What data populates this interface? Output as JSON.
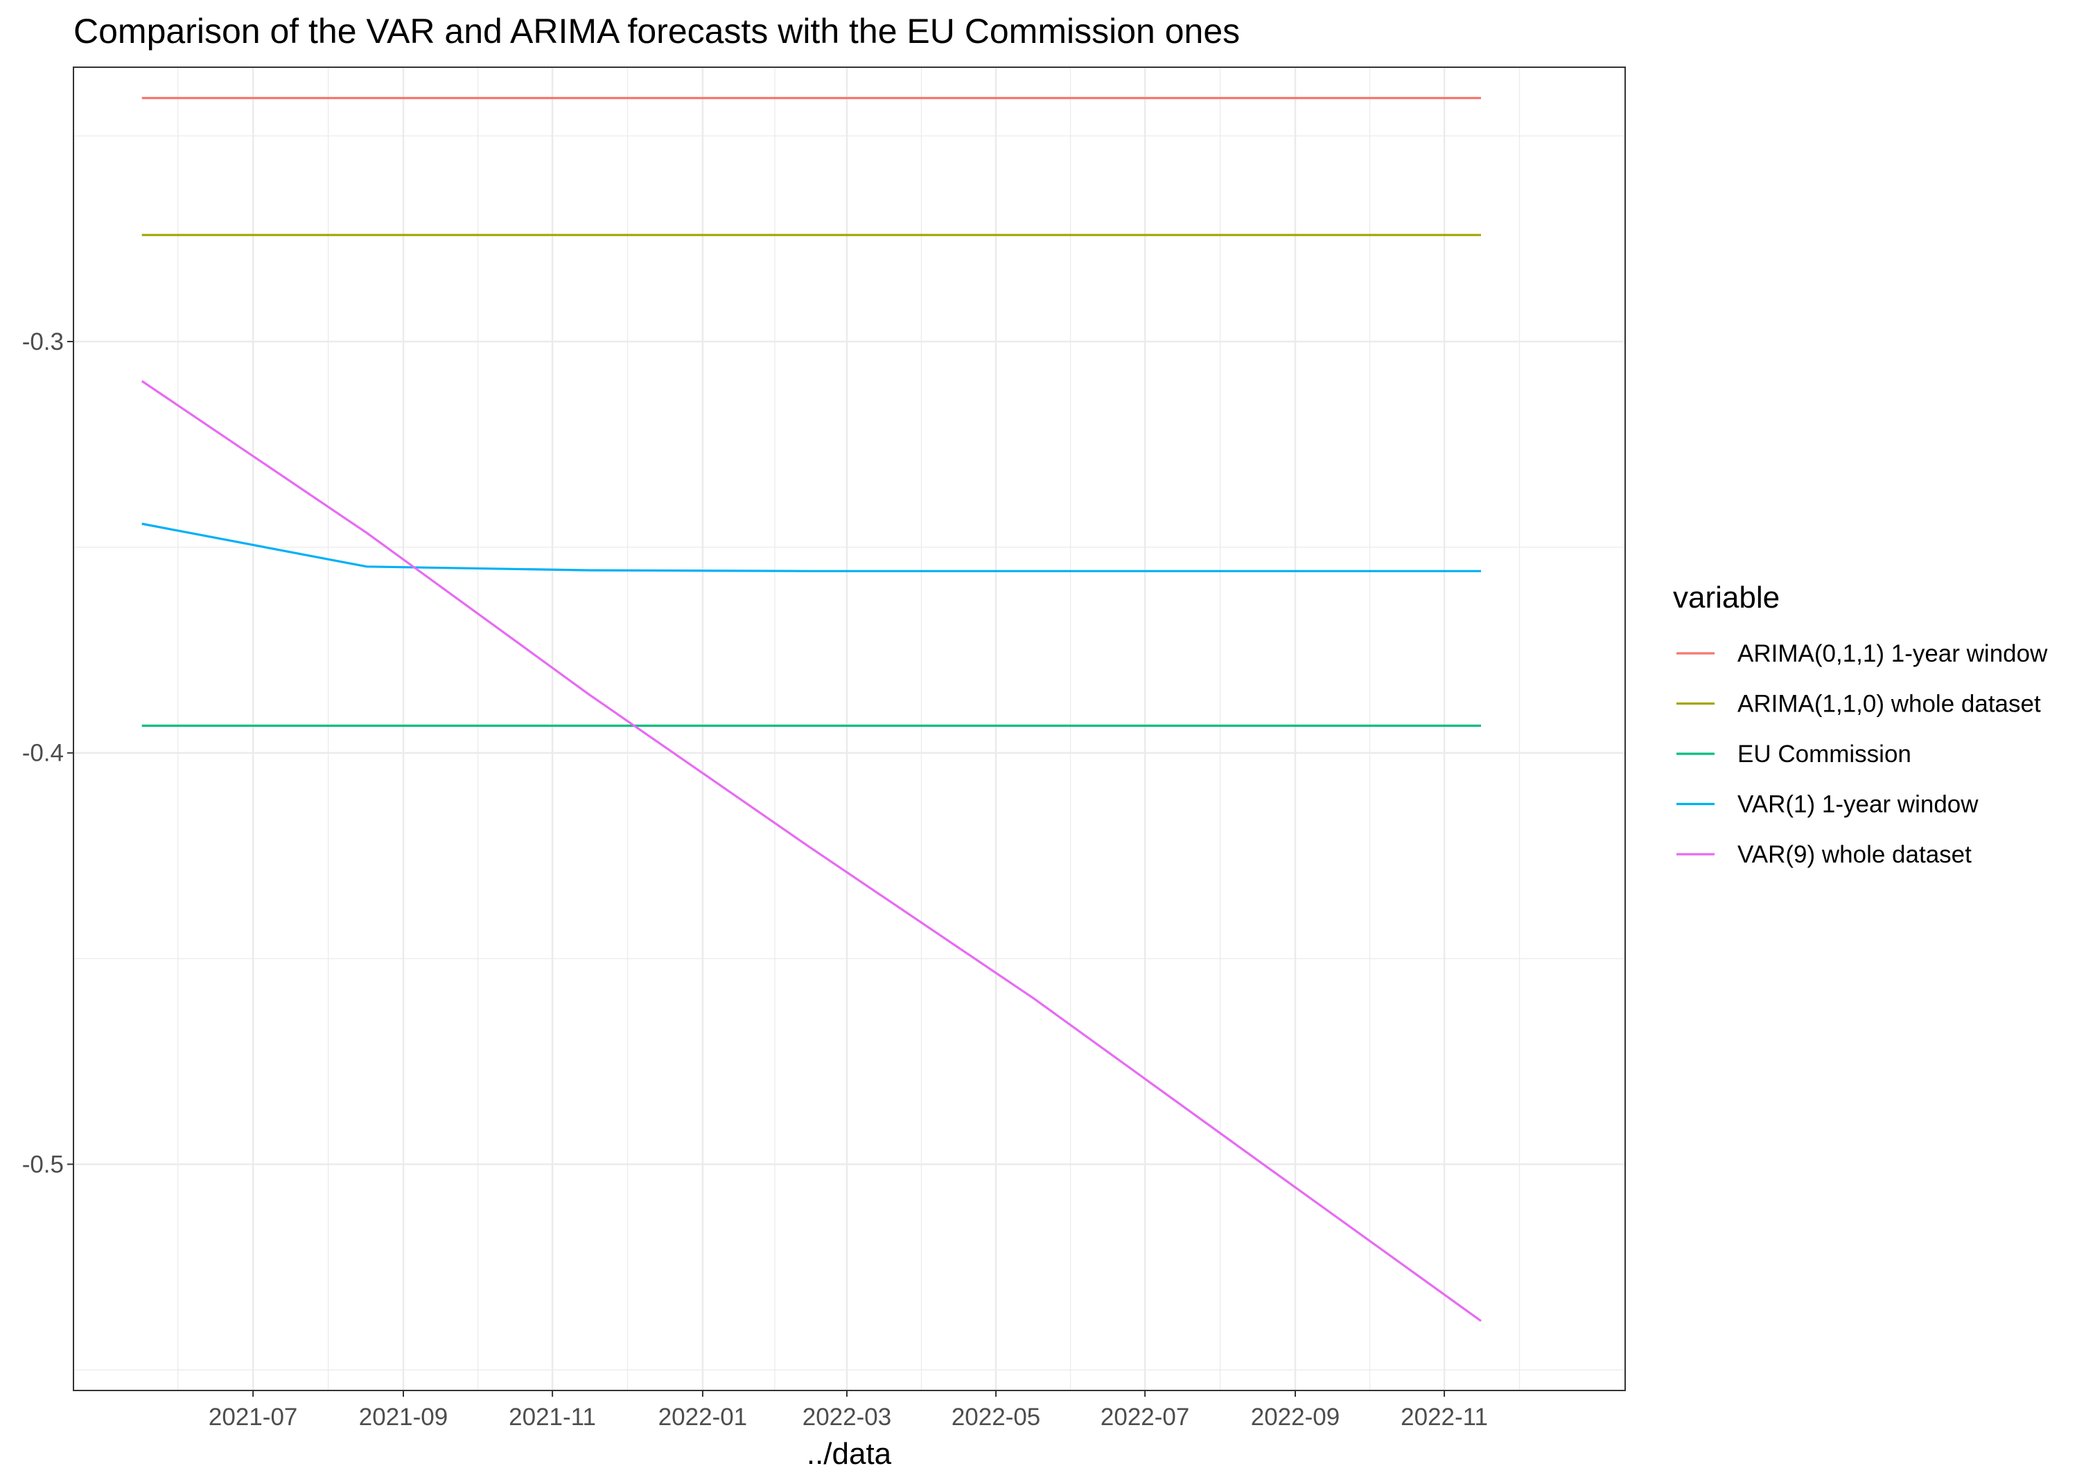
{
  "chart_data": {
    "type": "line",
    "title": "Comparison of the VAR and ARIMA forecasts with the EU Commission ones",
    "xlabel": "../data",
    "ylabel": "",
    "x": [
      "2021-06-01",
      "2021-09-01",
      "2021-12-01",
      "2022-03-01",
      "2022-06-01",
      "2022-09-01",
      "2022-12-01"
    ],
    "xlim": [
      "2021-05-04",
      "2023-01-29"
    ],
    "ylim": [
      -0.555,
      -0.2333
    ],
    "x_ticks": [
      "2021-07",
      "2021-09",
      "2021-11",
      "2022-01",
      "2022-03",
      "2022-05",
      "2022-07",
      "2022-09",
      "2022-11"
    ],
    "y_ticks": [
      -0.3,
      -0.4,
      -0.5
    ],
    "y_tick_labels": [
      "-0.3",
      "-0.4",
      "-0.5"
    ],
    "grid": true,
    "legend": {
      "title": "variable",
      "position": "right"
    },
    "series": [
      {
        "name": "ARIMA(0,1,1) 1-year window",
        "color": "#F8766D",
        "values": [
          -0.2408,
          -0.2408,
          -0.2408,
          -0.2408,
          -0.2408,
          -0.2408,
          -0.2408
        ]
      },
      {
        "name": "ARIMA(1,1,0) whole dataset",
        "color": "#A3A500",
        "values": [
          -0.2741,
          -0.2741,
          -0.2741,
          -0.2741,
          -0.2741,
          -0.2741,
          -0.2741
        ]
      },
      {
        "name": "EU Commission",
        "color": "#00BF7D",
        "values": [
          -0.3934,
          -0.3934,
          -0.3934,
          -0.3934,
          -0.3934,
          -0.3934,
          -0.3934
        ]
      },
      {
        "name": "VAR(1) 1-year window",
        "color": "#00B0F6",
        "values": [
          -0.3443,
          -0.3547,
          -0.3556,
          -0.3558,
          -0.3558,
          -0.3558,
          -0.3558
        ]
      },
      {
        "name": "VAR(9) whole dataset",
        "color": "#E76BF3",
        "values": [
          -0.3096,
          -0.3465,
          -0.3858,
          -0.4228,
          -0.4597,
          -0.4992,
          -0.5381
        ]
      }
    ]
  }
}
